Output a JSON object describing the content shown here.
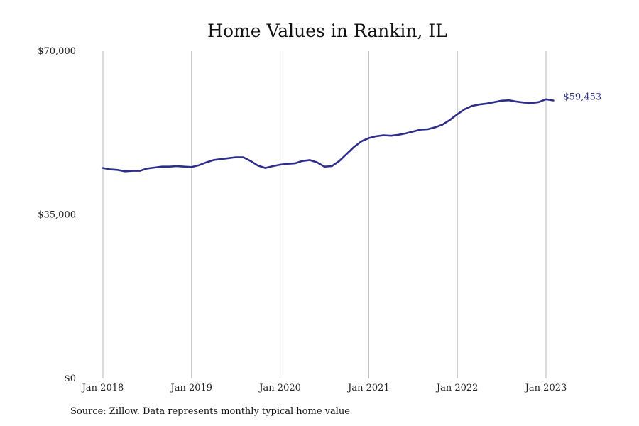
{
  "chart_data": {
    "type": "line",
    "title": "Home Values in Rankin, IL",
    "xlabel": "",
    "ylabel": "",
    "ylim": [
      0,
      70000
    ],
    "xlim": [
      "2018-01",
      "2023-03"
    ],
    "y_ticks": [
      0,
      35000,
      70000
    ],
    "y_tick_labels": [
      "$0",
      "$35,000",
      "$70,000"
    ],
    "x_ticks": [
      "2018-01",
      "2019-01",
      "2020-01",
      "2021-01",
      "2022-01",
      "2023-01"
    ],
    "x_tick_labels": [
      "Jan 2018",
      "Jan 2019",
      "Jan 2020",
      "Jan 2021",
      "Jan 2022",
      "Jan 2023"
    ],
    "grid": {
      "vertical": true,
      "horizontal": false
    },
    "legend": "none",
    "end_label": "$59,453",
    "series": [
      {
        "color": "#2e2e8a",
        "x": [
          "2018-01",
          "2018-02",
          "2018-03",
          "2018-04",
          "2018-05",
          "2018-06",
          "2018-07",
          "2018-08",
          "2018-09",
          "2018-10",
          "2018-11",
          "2018-12",
          "2019-01",
          "2019-02",
          "2019-03",
          "2019-04",
          "2019-05",
          "2019-06",
          "2019-07",
          "2019-08",
          "2019-09",
          "2019-10",
          "2019-11",
          "2019-12",
          "2020-01",
          "2020-02",
          "2020-03",
          "2020-04",
          "2020-05",
          "2020-06",
          "2020-07",
          "2020-08",
          "2020-09",
          "2020-10",
          "2020-11",
          "2020-12",
          "2021-01",
          "2021-02",
          "2021-03",
          "2021-04",
          "2021-05",
          "2021-06",
          "2021-07",
          "2021-08",
          "2021-09",
          "2021-10",
          "2021-11",
          "2021-12",
          "2022-01",
          "2022-02",
          "2022-03",
          "2022-04",
          "2022-05",
          "2022-06",
          "2022-07",
          "2022-08",
          "2022-09",
          "2022-10",
          "2022-11",
          "2022-12",
          "2023-01",
          "2023-02"
        ],
        "values": [
          45000,
          44700,
          44600,
          44300,
          44400,
          44400,
          44900,
          45100,
          45300,
          45300,
          45400,
          45300,
          45200,
          45600,
          46200,
          46700,
          46900,
          47100,
          47300,
          47300,
          46500,
          45500,
          45000,
          45400,
          45700,
          45900,
          46000,
          46500,
          46700,
          46200,
          45300,
          45400,
          46500,
          48000,
          49500,
          50700,
          51400,
          51800,
          52000,
          51900,
          52100,
          52400,
          52800,
          53200,
          53300,
          53700,
          54300,
          55300,
          56500,
          57600,
          58300,
          58600,
          58800,
          59100,
          59400,
          59500,
          59200,
          59000,
          58900,
          59100,
          59700,
          59453
        ]
      }
    ]
  },
  "footer": {
    "source": "Source: Zillow. Data represents monthly typical home value"
  }
}
